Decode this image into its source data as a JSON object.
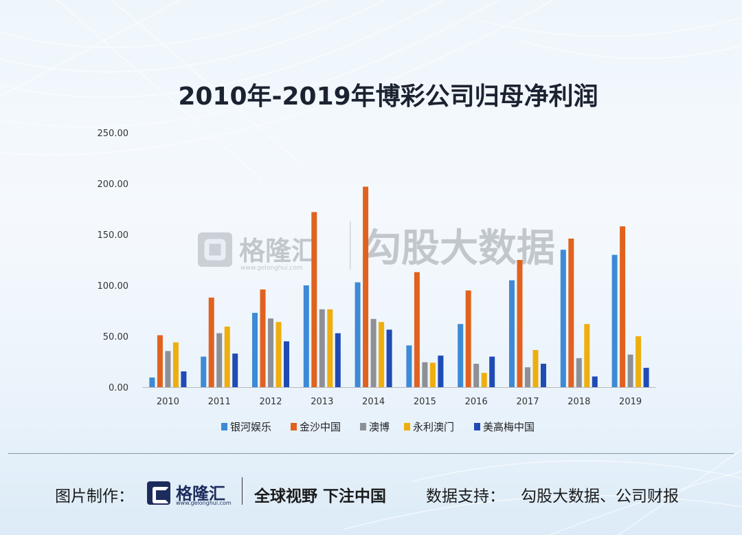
{
  "chart_data": {
    "type": "bar",
    "title": "2010年-2019年博彩公司归母净利润",
    "categories": [
      "2010",
      "2011",
      "2012",
      "2013",
      "2014",
      "2015",
      "2016",
      "2017",
      "2018",
      "2019"
    ],
    "series": [
      {
        "name": "银河娱乐",
        "color": "#3d8ad6",
        "values": [
          9.5,
          30,
          73,
          100,
          103,
          41,
          62,
          105,
          135,
          130
        ]
      },
      {
        "name": "金沙中国",
        "color": "#e1621f",
        "values": [
          51,
          88,
          96,
          172,
          197,
          113,
          95,
          125,
          146,
          158
        ]
      },
      {
        "name": "澳博",
        "color": "#8e9096",
        "values": [
          35.5,
          53,
          67.5,
          76.5,
          67,
          24.5,
          23,
          19.5,
          28.5,
          32
        ]
      },
      {
        "name": "永利澳门",
        "color": "#eeae0e",
        "values": [
          44,
          59.5,
          64,
          76.5,
          64,
          24,
          14,
          36.5,
          62,
          50
        ]
      },
      {
        "name": "美高梅中国",
        "color": "#1f4bb5",
        "values": [
          15.5,
          33,
          45,
          53,
          56.5,
          31,
          30,
          23,
          10.5,
          19
        ]
      }
    ],
    "ylim": [
      0,
      250
    ],
    "yticks": [
      "0.00",
      "50.00",
      "100.00",
      "150.00",
      "200.00",
      "250.00"
    ],
    "xlabel": "",
    "ylabel": "",
    "legend": "bottom"
  },
  "watermark": {
    "brand": "格隆汇",
    "url": "www.gelonghui.com",
    "product": "勾股大数据"
  },
  "footer": {
    "made_by_label": "图片制作：",
    "logo_name": "格隆汇",
    "logo_url": "www.gelonghui.com",
    "slogan": "全球视野 下注中国",
    "source_label": "数据支持：",
    "source_value": "勾股大数据、公司财报"
  },
  "colors": {
    "axis": "#b9b9b9",
    "watermark_logo": "#9aa0a6",
    "brand_navy": "#1d2c5c"
  }
}
